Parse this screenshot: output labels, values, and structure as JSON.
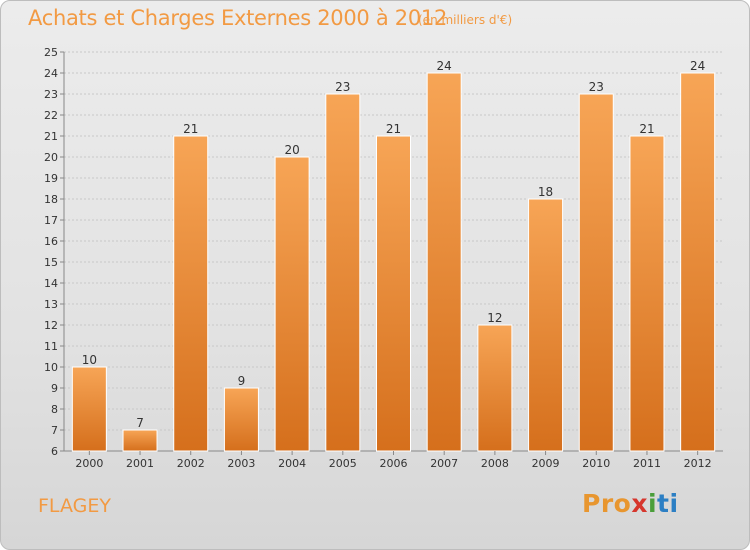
{
  "header": {
    "title": "Achats et Charges Externes 2000 à 2012",
    "subtitle": "(en milliers d'€)"
  },
  "footer": {
    "commune": "FLAGEY",
    "logo_text": "Proxiti"
  },
  "colors": {
    "bar_light": "#f7a556",
    "bar_dark": "#d56f1c",
    "title": "#f29a43",
    "grid": "#c8c8c8"
  },
  "chart_data": {
    "type": "bar",
    "title": "Achats et Charges Externes 2000 à 2012",
    "subtitle": "(en milliers d'€)",
    "categories": [
      "2000",
      "2001",
      "2002",
      "2003",
      "2004",
      "2005",
      "2006",
      "2007",
      "2008",
      "2009",
      "2010",
      "2011",
      "2012"
    ],
    "values": [
      10,
      7,
      21,
      9,
      20,
      23,
      21,
      24,
      12,
      18,
      23,
      21,
      24
    ],
    "ylim": [
      6,
      25
    ],
    "yticks": [
      6,
      7,
      8,
      9,
      10,
      11,
      12,
      13,
      14,
      15,
      16,
      17,
      18,
      19,
      20,
      21,
      22,
      23,
      24,
      25
    ],
    "grid": true,
    "legend": "none",
    "xlabel": "",
    "ylabel": ""
  }
}
